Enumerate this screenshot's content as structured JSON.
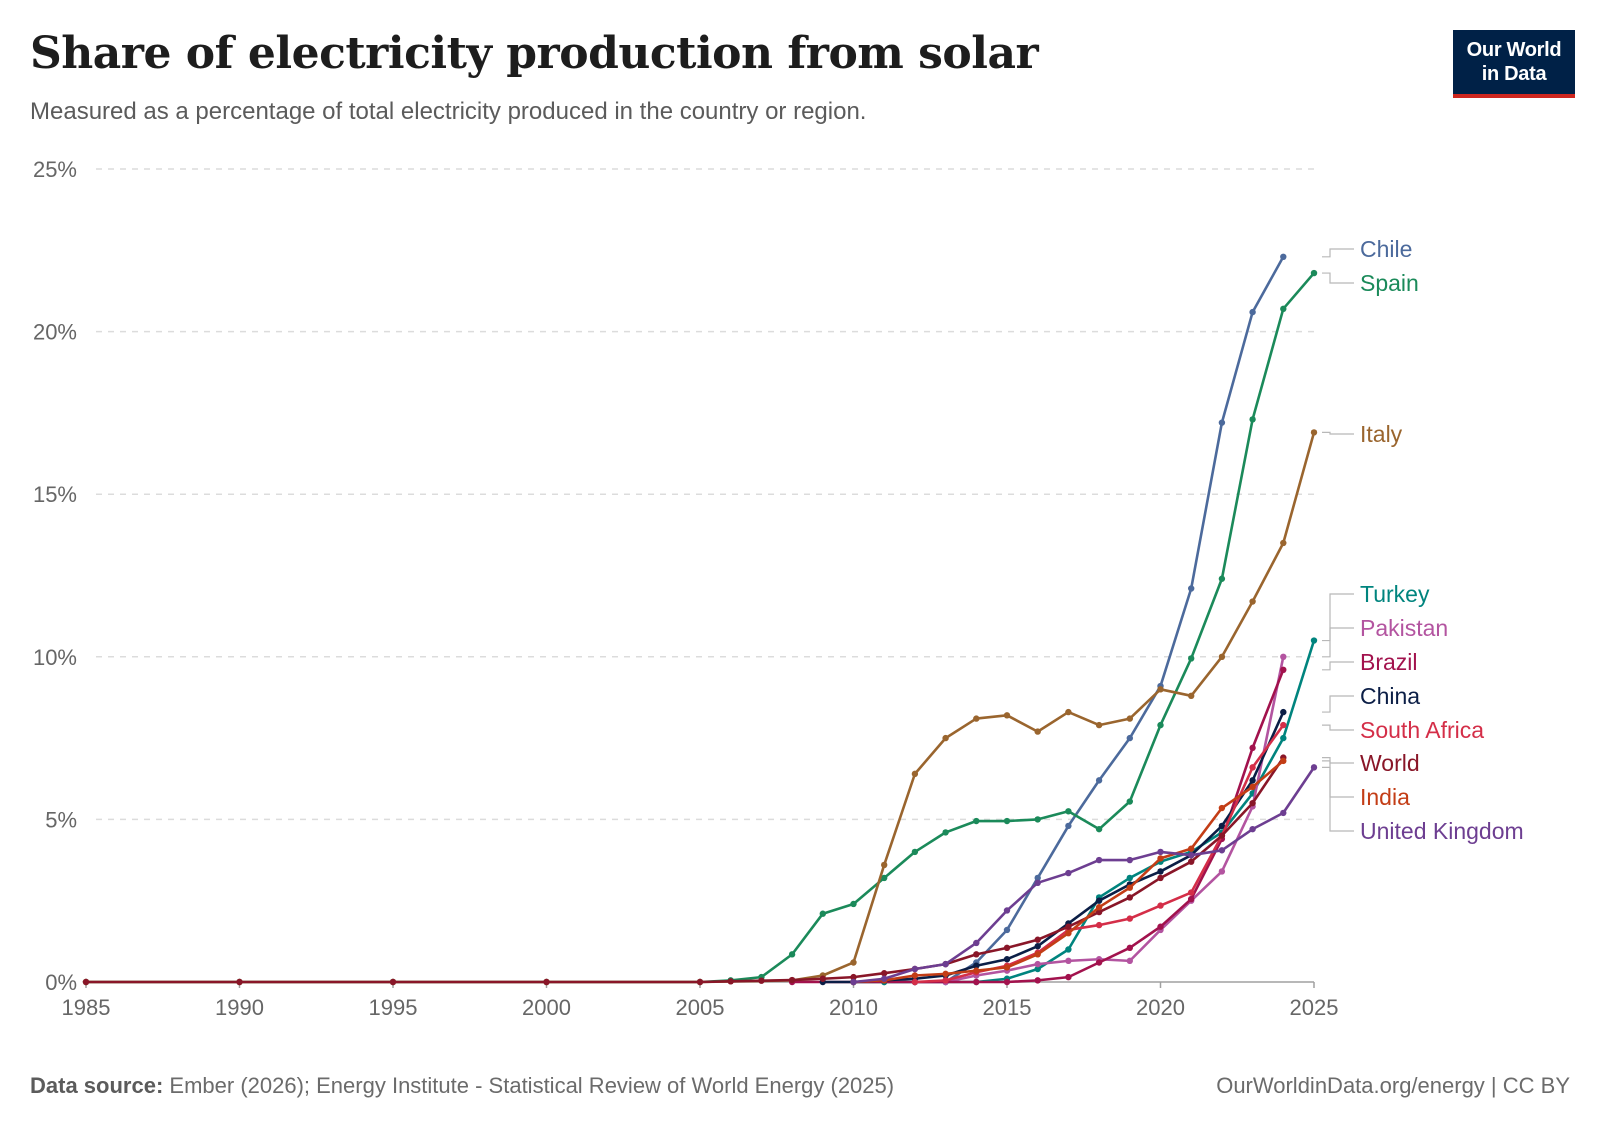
{
  "header": {
    "title": "Share of electricity production from solar",
    "subtitle": "Measured as a percentage of total electricity produced in the country or region."
  },
  "logo": {
    "line1": "Our World",
    "line2": "in Data"
  },
  "footer": {
    "source_label": "Data source:",
    "source_text": "Ember (2026); Energy Institute - Statistical Review of World Energy (2025)",
    "credit": "OurWorldinData.org/energy | CC BY"
  },
  "chart_data": {
    "type": "line",
    "title": "Share of electricity production from solar",
    "subtitle": "Measured as a percentage of total electricity produced in the country or region.",
    "xlabel": "",
    "ylabel": "",
    "xlim": [
      1985,
      2025
    ],
    "ylim": [
      0,
      25
    ],
    "x_ticks": [
      "1985",
      "1990",
      "1995",
      "2000",
      "2005",
      "2010",
      "2015",
      "2020",
      "2025"
    ],
    "y_ticks": [
      "0%",
      "5%",
      "10%",
      "15%",
      "20%",
      "25%"
    ],
    "grid": "horizontal dashed",
    "legend_placement": "right (line-end labels)",
    "series": [
      {
        "name": "Chile",
        "color": "#4c6a9c",
        "x": [
          2010,
          2011,
          2012,
          2013,
          2014,
          2015,
          2016,
          2017,
          2018,
          2019,
          2020,
          2021,
          2022,
          2023,
          2024
        ],
        "y": [
          0,
          0,
          0,
          0,
          0.6,
          1.6,
          3.2,
          4.8,
          6.2,
          7.5,
          9.1,
          12.1,
          17.2,
          20.6,
          22.3
        ]
      },
      {
        "name": "Spain",
        "color": "#1b8a5a",
        "x": [
          1985,
          1990,
          1995,
          2000,
          2005,
          2006,
          2007,
          2008,
          2009,
          2010,
          2011,
          2012,
          2013,
          2014,
          2015,
          2016,
          2017,
          2018,
          2019,
          2020,
          2021,
          2022,
          2023,
          2024,
          2025
        ],
        "y": [
          0,
          0,
          0,
          0,
          0,
          0.05,
          0.15,
          0.85,
          2.1,
          2.4,
          3.2,
          4.0,
          4.6,
          4.95,
          4.95,
          5.0,
          5.25,
          4.7,
          5.55,
          7.9,
          9.95,
          12.4,
          17.3,
          20.7,
          21.8
        ]
      },
      {
        "name": "Italy",
        "color": "#9a652e",
        "x": [
          1985,
          1990,
          1995,
          2000,
          2005,
          2008,
          2009,
          2010,
          2011,
          2012,
          2013,
          2014,
          2015,
          2016,
          2017,
          2018,
          2019,
          2020,
          2021,
          2022,
          2023,
          2024,
          2025
        ],
        "y": [
          0,
          0,
          0,
          0,
          0,
          0.05,
          0.2,
          0.6,
          3.6,
          6.4,
          7.5,
          8.1,
          8.2,
          7.7,
          8.3,
          7.9,
          8.1,
          9.0,
          8.8,
          10.0,
          11.7,
          13.5,
          16.9
        ]
      },
      {
        "name": "Turkey",
        "color": "#00847e",
        "x": [
          2010,
          2011,
          2012,
          2013,
          2014,
          2015,
          2016,
          2017,
          2018,
          2019,
          2020,
          2021,
          2022,
          2023,
          2024,
          2025
        ],
        "y": [
          0,
          0,
          0,
          0,
          0,
          0.1,
          0.4,
          1.0,
          2.6,
          3.2,
          3.7,
          4.0,
          4.6,
          5.8,
          7.5,
          10.5
        ]
      },
      {
        "name": "Pakistan",
        "color": "#b354a0",
        "x": [
          2012,
          2013,
          2014,
          2015,
          2016,
          2017,
          2018,
          2019,
          2020,
          2021,
          2022,
          2023,
          2024
        ],
        "y": [
          0,
          0,
          0.2,
          0.35,
          0.55,
          0.65,
          0.7,
          0.65,
          1.6,
          2.5,
          3.4,
          5.4,
          10.0
        ]
      },
      {
        "name": "Brazil",
        "color": "#a2124d",
        "x": [
          2008,
          2010,
          2012,
          2014,
          2015,
          2016,
          2017,
          2018,
          2019,
          2020,
          2021,
          2022,
          2023,
          2024
        ],
        "y": [
          0,
          0,
          0,
          0,
          0,
          0.05,
          0.15,
          0.6,
          1.05,
          1.7,
          2.55,
          4.4,
          7.2,
          9.6
        ]
      },
      {
        "name": "China",
        "color": "#0b1e46",
        "x": [
          2009,
          2010,
          2011,
          2012,
          2013,
          2014,
          2015,
          2016,
          2017,
          2018,
          2019,
          2020,
          2021,
          2022,
          2023,
          2024
        ],
        "y": [
          0,
          0,
          0.05,
          0.1,
          0.2,
          0.5,
          0.7,
          1.1,
          1.8,
          2.5,
          3.0,
          3.4,
          3.9,
          4.8,
          6.2,
          8.3
        ]
      },
      {
        "name": "South Africa",
        "color": "#d42e48",
        "x": [
          2012,
          2013,
          2014,
          2015,
          2016,
          2017,
          2018,
          2019,
          2020,
          2021,
          2022,
          2023,
          2024
        ],
        "y": [
          0,
          0.05,
          0.3,
          0.5,
          0.9,
          1.6,
          1.75,
          1.95,
          2.35,
          2.75,
          4.5,
          6.6,
          7.9
        ]
      },
      {
        "name": "World",
        "color": "#891628",
        "x": [
          1985,
          1990,
          1995,
          2000,
          2005,
          2006,
          2007,
          2008,
          2009,
          2010,
          2011,
          2012,
          2013,
          2014,
          2015,
          2016,
          2017,
          2018,
          2019,
          2020,
          2021,
          2022,
          2023,
          2024
        ],
        "y": [
          0,
          0,
          0,
          0,
          0,
          0.02,
          0.04,
          0.06,
          0.1,
          0.15,
          0.27,
          0.4,
          0.55,
          0.85,
          1.05,
          1.3,
          1.7,
          2.15,
          2.6,
          3.2,
          3.7,
          4.5,
          5.5,
          6.9
        ]
      },
      {
        "name": "India",
        "color": "#c33d16",
        "x": [
          2010,
          2011,
          2012,
          2013,
          2014,
          2015,
          2016,
          2017,
          2018,
          2019,
          2020,
          2021,
          2022,
          2023,
          2024
        ],
        "y": [
          0,
          0.05,
          0.2,
          0.25,
          0.35,
          0.45,
          0.85,
          1.5,
          2.3,
          2.9,
          3.8,
          4.1,
          5.35,
          6.0,
          6.8
        ]
      },
      {
        "name": "United Kingdom",
        "color": "#6d3e91",
        "x": [
          2010,
          2011,
          2012,
          2013,
          2014,
          2015,
          2016,
          2017,
          2018,
          2019,
          2020,
          2021,
          2022,
          2023,
          2024,
          2025
        ],
        "y": [
          0,
          0.1,
          0.4,
          0.55,
          1.2,
          2.2,
          3.05,
          3.35,
          3.75,
          3.75,
          4.0,
          3.9,
          4.05,
          4.7,
          5.2,
          6.6
        ]
      }
    ]
  }
}
